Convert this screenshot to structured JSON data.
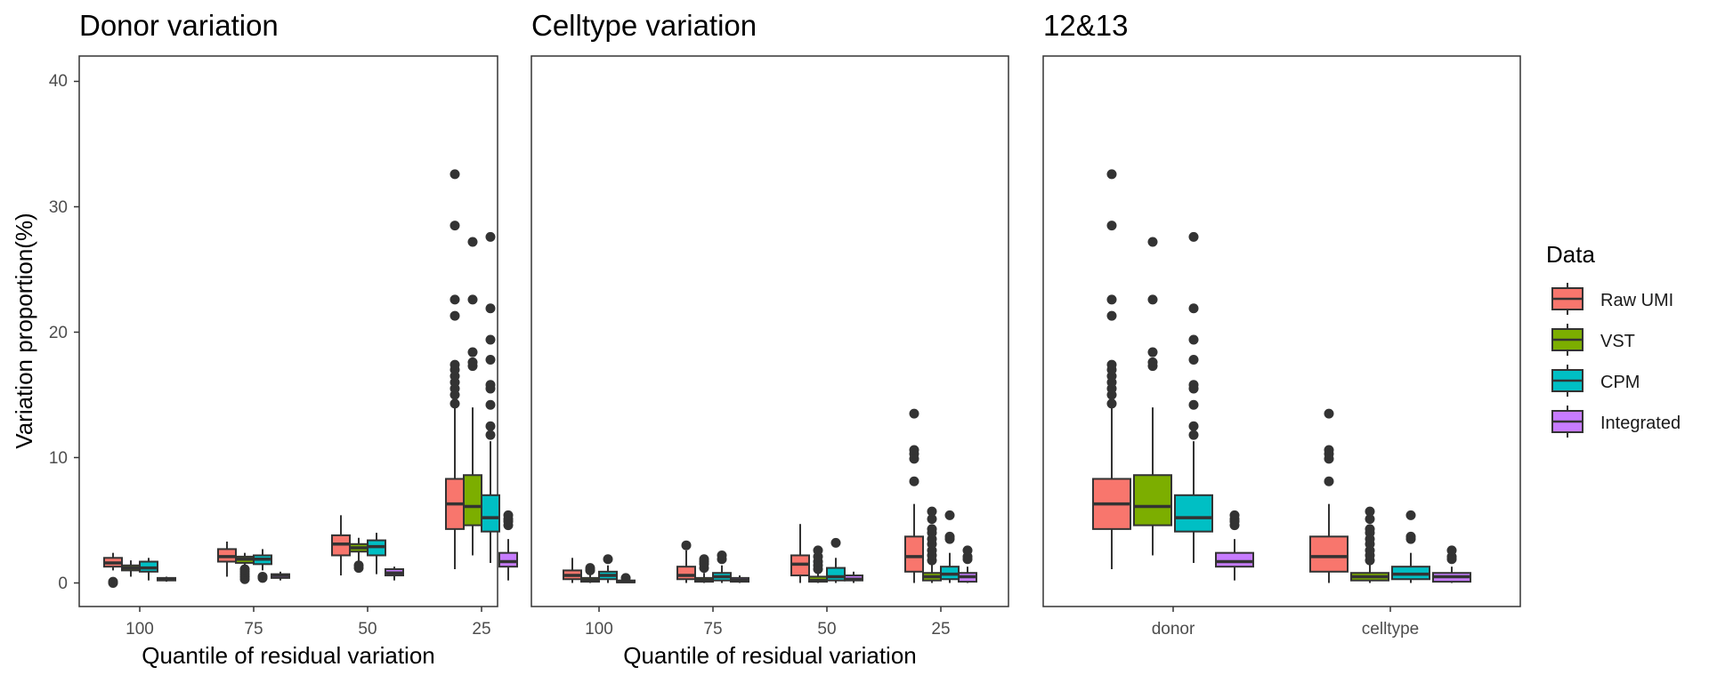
{
  "colors": {
    "Raw UMI": "#F8766D",
    "VST": "#7CAE00",
    "CPM": "#00BFC4",
    "Integrated": "#C77CFF",
    "outline": "#333333",
    "panel_border": "#333333"
  },
  "y_axis": {
    "label": "Variation proportion(%)",
    "ylim": [
      -2,
      41
    ],
    "ticks": [
      "0",
      "10",
      "20",
      "30",
      "40"
    ]
  },
  "legend": {
    "title": "Data",
    "entries": [
      "Raw UMI",
      "VST",
      "CPM",
      "Integrated"
    ],
    "placement": "right"
  },
  "chart_data": [
    {
      "type": "box",
      "title": "Donor variation",
      "xlabel": "Quantile of residual variation",
      "categories": [
        "100",
        "75",
        "50",
        "25"
      ],
      "series": [
        {
          "name": "Raw UMI",
          "boxes": [
            {
              "lo": 1.0,
              "q1": 1.3,
              "med": 1.6,
              "q3": 2.0,
              "hi": 2.4,
              "out": [
                0.0,
                0.1
              ]
            },
            {
              "lo": 0.5,
              "q1": 1.7,
              "med": 2.1,
              "q3": 2.7,
              "hi": 3.3,
              "out": []
            },
            {
              "lo": 0.6,
              "q1": 2.2,
              "med": 3.1,
              "q3": 3.8,
              "hi": 5.4,
              "out": []
            },
            {
              "lo": 1.1,
              "q1": 4.3,
              "med": 6.3,
              "q3": 8.3,
              "hi": 14.0,
              "out": [
                14.3,
                15.0,
                15.5,
                16.0,
                16.5,
                17.0,
                17.4,
                21.3,
                22.6,
                28.5,
                32.6
              ]
            }
          ]
        },
        {
          "name": "VST",
          "boxes": [
            {
              "lo": 0.5,
              "q1": 1.0,
              "med": 1.2,
              "q3": 1.4,
              "hi": 1.8,
              "out": []
            },
            {
              "lo": 1.0,
              "q1": 1.6,
              "med": 1.9,
              "q3": 2.1,
              "hi": 2.4,
              "out": [
                0.3,
                0.5,
                0.7,
                0.9,
                1.1
              ]
            },
            {
              "lo": 1.7,
              "q1": 2.5,
              "med": 2.8,
              "q3": 3.1,
              "hi": 3.6,
              "out": [
                1.2,
                1.4
              ]
            },
            {
              "lo": 2.2,
              "q1": 4.6,
              "med": 6.1,
              "q3": 8.6,
              "hi": 14.0,
              "out": [
                17.3,
                17.6,
                18.4,
                22.6,
                27.2
              ]
            }
          ]
        },
        {
          "name": "CPM",
          "boxes": [
            {
              "lo": 0.2,
              "q1": 0.9,
              "med": 1.2,
              "q3": 1.7,
              "hi": 2.0,
              "out": []
            },
            {
              "lo": 1.0,
              "q1": 1.5,
              "med": 1.9,
              "q3": 2.2,
              "hi": 2.7,
              "out": [
                0.4,
                0.5
              ]
            },
            {
              "lo": 0.7,
              "q1": 2.2,
              "med": 2.9,
              "q3": 3.4,
              "hi": 4.0,
              "out": []
            },
            {
              "lo": 1.6,
              "q1": 4.1,
              "med": 5.2,
              "q3": 7.0,
              "hi": 11.3,
              "out": [
                11.8,
                12.5,
                14.2,
                15.5,
                15.8,
                17.8,
                19.4,
                21.9,
                27.6
              ]
            }
          ]
        },
        {
          "name": "Integrated",
          "boxes": [
            {
              "lo": 0.1,
              "q1": 0.2,
              "med": 0.3,
              "q3": 0.4,
              "hi": 0.5,
              "out": []
            },
            {
              "lo": 0.2,
              "q1": 0.4,
              "med": 0.6,
              "q3": 0.7,
              "hi": 0.9,
              "out": []
            },
            {
              "lo": 0.2,
              "q1": 0.6,
              "med": 0.8,
              "q3": 1.1,
              "hi": 1.3,
              "out": []
            },
            {
              "lo": 0.2,
              "q1": 1.3,
              "med": 1.7,
              "q3": 2.4,
              "hi": 3.5,
              "out": [
                4.6,
                4.9,
                5.1,
                5.4
              ]
            }
          ]
        }
      ]
    },
    {
      "type": "box",
      "title": "Celltype variation",
      "xlabel": "Quantile of residual variation",
      "categories": [
        "100",
        "75",
        "50",
        "25"
      ],
      "series": [
        {
          "name": "Raw UMI",
          "boxes": [
            {
              "lo": 0.0,
              "q1": 0.3,
              "med": 0.6,
              "q3": 1.0,
              "hi": 2.0,
              "out": []
            },
            {
              "lo": 0.0,
              "q1": 0.3,
              "med": 0.6,
              "q3": 1.3,
              "hi": 2.6,
              "out": [
                3.0
              ]
            },
            {
              "lo": 0.0,
              "q1": 0.6,
              "med": 1.5,
              "q3": 2.2,
              "hi": 4.7,
              "out": []
            },
            {
              "lo": 0.0,
              "q1": 0.9,
              "med": 2.1,
              "q3": 3.7,
              "hi": 6.3,
              "out": [
                8.1,
                9.9,
                10.3,
                10.6,
                13.5
              ]
            }
          ]
        },
        {
          "name": "VST",
          "boxes": [
            {
              "lo": 0.0,
              "q1": 0.1,
              "med": 0.2,
              "q3": 0.4,
              "hi": 0.8,
              "out": [
                1.0,
                1.2
              ]
            },
            {
              "lo": 0.0,
              "q1": 0.1,
              "med": 0.2,
              "q3": 0.4,
              "hi": 0.8,
              "out": [
                1.2,
                1.5,
                1.7,
                1.9
              ]
            },
            {
              "lo": 0.0,
              "q1": 0.1,
              "med": 0.2,
              "q3": 0.5,
              "hi": 0.9,
              "out": [
                1.1,
                1.4,
                1.7,
                2.1,
                2.6
              ]
            },
            {
              "lo": 0.0,
              "q1": 0.2,
              "med": 0.5,
              "q3": 0.8,
              "hi": 1.5,
              "out": [
                1.8,
                2.2,
                2.6,
                3.1,
                3.5,
                4.0,
                4.3,
                5.1,
                5.7
              ]
            }
          ]
        },
        {
          "name": "CPM",
          "boxes": [
            {
              "lo": 0.0,
              "q1": 0.3,
              "med": 0.6,
              "q3": 0.9,
              "hi": 1.4,
              "out": [
                1.9
              ]
            },
            {
              "lo": 0.0,
              "q1": 0.2,
              "med": 0.5,
              "q3": 0.8,
              "hi": 1.4,
              "out": [
                1.9,
                2.2
              ]
            },
            {
              "lo": 0.0,
              "q1": 0.2,
              "med": 0.5,
              "q3": 1.2,
              "hi": 2.0,
              "out": [
                3.2
              ]
            },
            {
              "lo": 0.0,
              "q1": 0.3,
              "med": 0.7,
              "q3": 1.3,
              "hi": 2.4,
              "out": [
                3.5,
                3.7,
                5.4
              ]
            }
          ]
        },
        {
          "name": "Integrated",
          "boxes": [
            {
              "lo": 0.0,
              "q1": 0.05,
              "med": 0.1,
              "q3": 0.2,
              "hi": 0.3,
              "out": [
                0.4
              ]
            },
            {
              "lo": 0.0,
              "q1": 0.1,
              "med": 0.2,
              "q3": 0.4,
              "hi": 0.6,
              "out": []
            },
            {
              "lo": 0.0,
              "q1": 0.2,
              "med": 0.3,
              "q3": 0.6,
              "hi": 0.9,
              "out": []
            },
            {
              "lo": 0.0,
              "q1": 0.1,
              "med": 0.5,
              "q3": 0.8,
              "hi": 1.3,
              "out": [
                1.9,
                2.1,
                2.6
              ]
            }
          ]
        }
      ]
    },
    {
      "type": "box",
      "title": "12&13",
      "xlabel": "",
      "categories": [
        "donor",
        "celltype"
      ],
      "series": [
        {
          "name": "Raw UMI",
          "boxes": [
            {
              "lo": 1.1,
              "q1": 4.3,
              "med": 6.3,
              "q3": 8.3,
              "hi": 14.0,
              "out": [
                14.3,
                15.0,
                15.5,
                16.0,
                16.5,
                17.0,
                17.4,
                21.3,
                22.6,
                28.5,
                32.6
              ]
            },
            {
              "lo": 0.0,
              "q1": 0.9,
              "med": 2.1,
              "q3": 3.7,
              "hi": 6.3,
              "out": [
                8.1,
                9.9,
                10.3,
                10.6,
                13.5
              ]
            }
          ]
        },
        {
          "name": "VST",
          "boxes": [
            {
              "lo": 2.2,
              "q1": 4.6,
              "med": 6.1,
              "q3": 8.6,
              "hi": 14.0,
              "out": [
                17.3,
                17.6,
                18.4,
                22.6,
                27.2
              ]
            },
            {
              "lo": 0.0,
              "q1": 0.2,
              "med": 0.5,
              "q3": 0.8,
              "hi": 1.5,
              "out": [
                1.8,
                2.2,
                2.6,
                3.1,
                3.5,
                4.0,
                4.3,
                5.1,
                5.7
              ]
            }
          ]
        },
        {
          "name": "CPM",
          "boxes": [
            {
              "lo": 1.6,
              "q1": 4.1,
              "med": 5.2,
              "q3": 7.0,
              "hi": 11.3,
              "out": [
                11.8,
                12.5,
                14.2,
                15.5,
                15.8,
                17.8,
                19.4,
                21.9,
                27.6
              ]
            },
            {
              "lo": 0.0,
              "q1": 0.3,
              "med": 0.7,
              "q3": 1.3,
              "hi": 2.4,
              "out": [
                3.5,
                3.7,
                5.4
              ]
            }
          ]
        },
        {
          "name": "Integrated",
          "boxes": [
            {
              "lo": 0.2,
              "q1": 1.3,
              "med": 1.7,
              "q3": 2.4,
              "hi": 3.5,
              "out": [
                4.6,
                4.9,
                5.1,
                5.4
              ]
            },
            {
              "lo": 0.0,
              "q1": 0.1,
              "med": 0.5,
              "q3": 0.8,
              "hi": 1.3,
              "out": [
                1.9,
                2.1,
                2.6
              ]
            }
          ]
        }
      ]
    }
  ]
}
